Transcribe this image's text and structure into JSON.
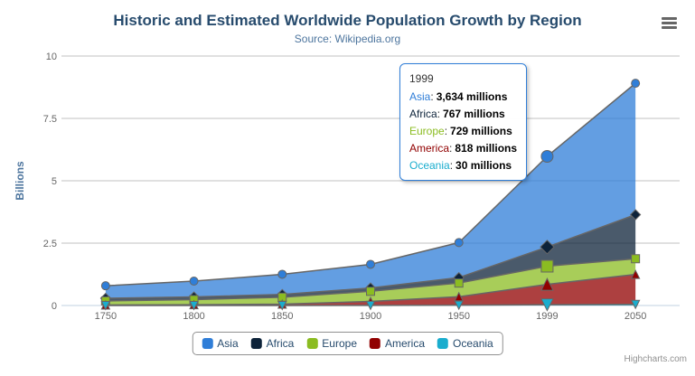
{
  "chart_data": {
    "type": "area",
    "stacking": "normal",
    "title": "Historic and Estimated Worldwide Population Growth by Region",
    "subtitle": "Source: Wikipedia.org",
    "categories": [
      "1750",
      "1800",
      "1850",
      "1900",
      "1950",
      "1999",
      "2050"
    ],
    "series": [
      {
        "name": "Asia",
        "color": "#2f7ed8",
        "marker": "circle",
        "values": [
          502,
          635,
          809,
          947,
          1402,
          3634,
          5268
        ]
      },
      {
        "name": "Africa",
        "color": "#0d233a",
        "marker": "diamond",
        "values": [
          106,
          107,
          111,
          133,
          221,
          767,
          1766
        ]
      },
      {
        "name": "Europe",
        "color": "#8bbc21",
        "marker": "square",
        "values": [
          163,
          203,
          276,
          408,
          547,
          729,
          628
        ]
      },
      {
        "name": "America",
        "color": "#910000",
        "marker": "triangle",
        "values": [
          18,
          31,
          54,
          156,
          339,
          818,
          1201
        ]
      },
      {
        "name": "Oceania",
        "color": "#1aadce",
        "marker": "triangle-down",
        "values": [
          2,
          2,
          2,
          6,
          13,
          30,
          46
        ]
      }
    ],
    "values_unit": "millions",
    "xlabel": "",
    "ylabel": "Billions",
    "ylim": [
      0,
      10
    ],
    "yticks": [
      {
        "value": 0,
        "label": "0"
      },
      {
        "value": 2.5,
        "label": "2.5"
      },
      {
        "value": 5,
        "label": "5"
      },
      {
        "value": 7.5,
        "label": "7.5"
      },
      {
        "value": 10,
        "label": "10"
      }
    ],
    "grid": true,
    "legend_position": "bottom",
    "hovered_category": "1999",
    "colors": {
      "title": "#274b6d",
      "subtitle": "#4d759e",
      "axis_label": "#666666",
      "axis_title": "#4d759e",
      "gridline": "#c0c0c0",
      "axis_line": "#c0d0e0",
      "series_line": "#666666",
      "legend_text": "#274b6d",
      "legend_border": "#909090",
      "tooltip_border": "#2f7ed8",
      "credits_text": "#909090",
      "menu_icon": "#666666"
    }
  },
  "tooltip": {
    "header": "1999",
    "rows": [
      {
        "label": "Asia",
        "color": "#2f7ed8",
        "value": "3,634 millions"
      },
      {
        "label": "Africa",
        "color": "#0d233a",
        "value": "767 millions"
      },
      {
        "label": "Europe",
        "color": "#8bbc21",
        "value": "729 millions"
      },
      {
        "label": "America",
        "color": "#910000",
        "value": "818 millions"
      },
      {
        "label": "Oceania",
        "color": "#1aadce",
        "value": "30 millions"
      }
    ]
  },
  "context_menu": {
    "icon": "hamburger-icon"
  },
  "credits": {
    "label": "Highcharts.com"
  }
}
